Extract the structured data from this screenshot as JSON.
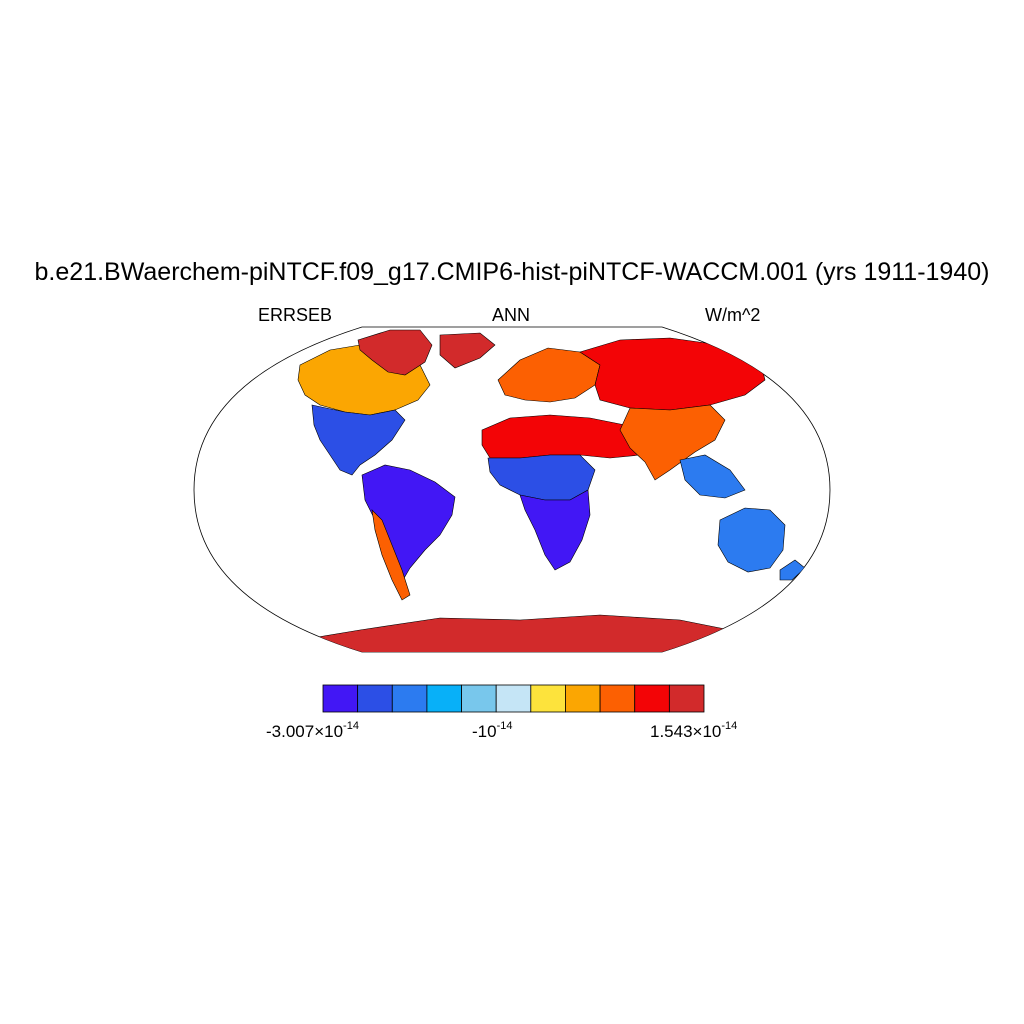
{
  "title": "b.e21.BWaerchem-piNTCF.f09_g17.CMIP6-hist-piNTCF-WACCM.001 (yrs 1911-1940)",
  "variable": "ERRSEB",
  "season": "ANN",
  "units": "W/m^2",
  "projection": "Robinson",
  "colorbar": {
    "colors": [
      "#4217f5",
      "#2c4fe6",
      "#2c7bf0",
      "#08b0f8",
      "#78c7ec",
      "#c5e5f6",
      "#fde33c",
      "#fba602",
      "#fc6002",
      "#f30406",
      "#d22a2b"
    ],
    "labels": [
      {
        "mantissa": "-3.007×10",
        "exponent": "-14"
      },
      {
        "mantissa": "-10",
        "exponent": "-14"
      },
      {
        "mantissa": "1.543×10",
        "exponent": "-14"
      }
    ]
  },
  "regions": {
    "north_america_north": "#fba602",
    "north_america_south": "#2c4fe6",
    "greenland": "#d22a2b",
    "south_america": "#4217f5",
    "andes_patagonia": "#fc6002",
    "europe": "#fc6002",
    "russia_north": "#f30406",
    "north_africa_middle_east": "#f30406",
    "central_africa": "#2c4fe6",
    "southern_africa": "#4217f5",
    "india_china": "#fc6002",
    "southeast_asia": "#2c7bf0",
    "australia": "#2c7bf0",
    "antarctica": "#d22a2b"
  }
}
